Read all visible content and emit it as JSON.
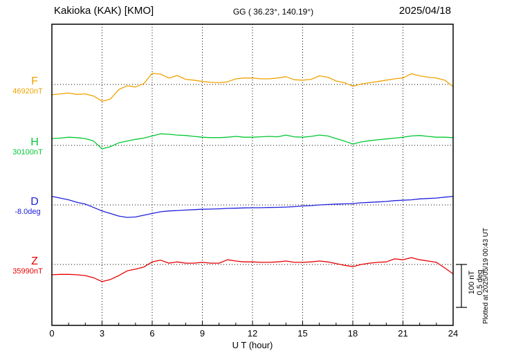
{
  "header": {
    "title": "Kakioka (KAK)  [KMO]",
    "coordinates": "GG ( 36.23°, 140.19°)",
    "date": "2025/04/18"
  },
  "scalebar": {
    "nt_label": "100 nT",
    "deg_label": "0.5 deg"
  },
  "plotted_note": "Plotted at 2025/05/19 00:43 UT",
  "chart_data": {
    "type": "line",
    "title": "Kakioka (KAK)  [KMO]",
    "date": "2025/04/18",
    "xlabel": "U T (hour)",
    "x_range": [
      0,
      24
    ],
    "xticks": [
      0,
      3,
      6,
      9,
      12,
      15,
      18,
      21,
      24
    ],
    "x_start": 0,
    "x_step_hours": 0.5,
    "grid": "dotted vertical lines every 3 hours; dotted horizontal baseline per trace",
    "scale_per_division": {
      "nT": 100,
      "deg": 0.5
    },
    "series": [
      {
        "name": "F",
        "unit": "nT",
        "baseline": 46920,
        "baseline_label": "46920nT",
        "color": "#f0a202",
        "values": [
          -24,
          -22,
          -20,
          -23,
          -22,
          -27,
          -39,
          -34,
          -12,
          -3,
          -6,
          2,
          26,
          24,
          15,
          21,
          12,
          10,
          7,
          5,
          4,
          6,
          13,
          15,
          15,
          13,
          13,
          15,
          18,
          11,
          10,
          12,
          20,
          17,
          8,
          4,
          -4,
          1,
          4,
          7,
          10,
          13,
          15,
          25,
          20,
          17,
          15,
          10,
          -5
        ]
      },
      {
        "name": "H",
        "unit": "nT",
        "baseline": 30100,
        "baseline_label": "30100nT",
        "color": "#00c832",
        "values": [
          16,
          17,
          19,
          18,
          16,
          10,
          -8,
          -3,
          6,
          10,
          14,
          17,
          22,
          27,
          26,
          24,
          23,
          21,
          19,
          18,
          18,
          19,
          21,
          19,
          19,
          20,
          21,
          20,
          24,
          20,
          19,
          21,
          24,
          22,
          16,
          10,
          3,
          8,
          11,
          13,
          15,
          17,
          19,
          22,
          23,
          21,
          19,
          19,
          18
        ]
      },
      {
        "name": "D",
        "unit": "deg",
        "baseline": -8.0,
        "baseline_label": "-8.0deg",
        "color": "#2020dd",
        "values": [
          0.1,
          0.08,
          0.06,
          0.03,
          0.01,
          -0.03,
          -0.07,
          -0.1,
          -0.13,
          -0.145,
          -0.14,
          -0.12,
          -0.1,
          -0.08,
          -0.07,
          -0.065,
          -0.06,
          -0.055,
          -0.05,
          -0.048,
          -0.045,
          -0.04,
          -0.038,
          -0.035,
          -0.033,
          -0.032,
          -0.03,
          -0.028,
          -0.025,
          -0.02,
          -0.012,
          -0.008,
          0.0,
          0.005,
          0.01,
          0.012,
          0.015,
          0.025,
          0.03,
          0.035,
          0.04,
          0.05,
          0.055,
          0.06,
          0.07,
          0.075,
          0.08,
          0.09,
          0.1
        ]
      },
      {
        "name": "Z",
        "unit": "nT",
        "baseline": 35990,
        "baseline_label": "35990nT",
        "color": "#e60000",
        "values": [
          -24,
          -23,
          -23,
          -24,
          -26,
          -31,
          -40,
          -35,
          -26,
          -15,
          -11,
          -6,
          6,
          10,
          3,
          6,
          3,
          3,
          5,
          3,
          3,
          11,
          8,
          6,
          6,
          5,
          5,
          6,
          8,
          5,
          5,
          6,
          8,
          6,
          2,
          -2,
          -5,
          0,
          3,
          5,
          6,
          13,
          11,
          16,
          11,
          8,
          5,
          -8,
          -22
        ]
      }
    ]
  }
}
